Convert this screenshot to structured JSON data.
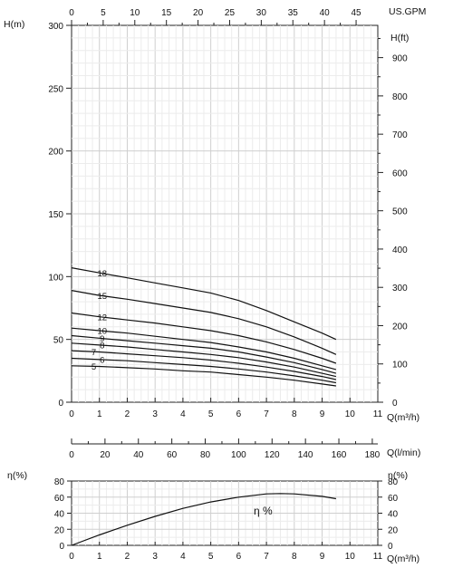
{
  "chart_data": [
    {
      "type": "line",
      "name": "head",
      "x_label": "Q(m³/h)",
      "x_ticks": [
        0,
        1,
        2,
        3,
        4,
        5,
        6,
        7,
        8,
        9,
        10,
        11
      ],
      "xlim": [
        0,
        11
      ],
      "y_label": "H(m)",
      "y_ticks": [
        0,
        50,
        100,
        150,
        200,
        250,
        300
      ],
      "ylim": [
        0,
        300
      ],
      "y2_label": "H(ft)",
      "y2_ticks": [
        0,
        100,
        200,
        300,
        400,
        500,
        600,
        700,
        800,
        900
      ],
      "top_label": "US.GPM",
      "top_ticks": [
        0,
        5,
        10,
        15,
        20,
        25,
        30,
        35,
        40,
        45
      ],
      "grid": true,
      "series": [
        {
          "name": "18",
          "label_x": 1.1,
          "x": [
            0,
            1,
            2,
            3,
            4,
            5,
            6,
            7,
            8,
            9,
            9.5
          ],
          "y": [
            107,
            103,
            99,
            95,
            91,
            87,
            81,
            73,
            64,
            55,
            50
          ]
        },
        {
          "name": "15",
          "label_x": 1.1,
          "x": [
            0,
            1,
            2,
            3,
            4,
            5,
            6,
            7,
            8,
            9,
            9.5
          ],
          "y": [
            89,
            85,
            82,
            78.5,
            75,
            71.5,
            66.5,
            60,
            52,
            43,
            38
          ]
        },
        {
          "name": "12",
          "label_x": 1.1,
          "x": [
            0,
            1,
            2,
            3,
            4,
            5,
            6,
            7,
            8,
            9,
            9.5
          ],
          "y": [
            71,
            68,
            65.5,
            63,
            60,
            57,
            53,
            48,
            42,
            35,
            31
          ]
        },
        {
          "name": "10",
          "label_x": 1.1,
          "x": [
            0,
            1,
            2,
            3,
            4,
            5,
            6,
            7,
            8,
            9,
            9.5
          ],
          "y": [
            59,
            57,
            55,
            52.5,
            50,
            47.5,
            44,
            40,
            35,
            29,
            26
          ]
        },
        {
          "name": "9",
          "label_x": 1.1,
          "x": [
            0,
            1,
            2,
            3,
            4,
            5,
            6,
            7,
            8,
            9,
            9.5
          ],
          "y": [
            53,
            51,
            49,
            47,
            45,
            43,
            40,
            36,
            31.5,
            26,
            23
          ]
        },
        {
          "name": "8",
          "label_x": 1.1,
          "x": [
            0,
            1,
            2,
            3,
            4,
            5,
            6,
            7,
            8,
            9,
            9.5
          ],
          "y": [
            47,
            45.5,
            44,
            42,
            40,
            38,
            35.5,
            32,
            28,
            23,
            20.5
          ]
        },
        {
          "name": "7",
          "label_x": 0.8,
          "x": [
            0,
            1,
            2,
            3,
            4,
            5,
            6,
            7,
            8,
            9,
            9.5
          ],
          "y": [
            41,
            40,
            38.5,
            37,
            35.5,
            33.5,
            31,
            28,
            24.5,
            20.5,
            18
          ]
        },
        {
          "name": "6",
          "label_x": 1.1,
          "x": [
            0,
            1,
            2,
            3,
            4,
            5,
            6,
            7,
            8,
            9,
            9.5
          ],
          "y": [
            35,
            34,
            33,
            31.5,
            30,
            28.5,
            26.5,
            24,
            21,
            17.5,
            15.5
          ]
        },
        {
          "name": "5",
          "label_x": 0.8,
          "x": [
            0,
            1,
            2,
            3,
            4,
            5,
            6,
            7,
            8,
            9,
            9.5
          ],
          "y": [
            29,
            28.5,
            27.5,
            26.5,
            25,
            24,
            22,
            20,
            17.5,
            14.5,
            13
          ]
        }
      ]
    },
    {
      "type": "axis",
      "name": "flow-lpm",
      "x_label": "Q(l/min)",
      "x_ticks": [
        0,
        20,
        40,
        60,
        80,
        100,
        120,
        140,
        160,
        180
      ],
      "xlim": [
        0,
        183.3
      ]
    },
    {
      "type": "line",
      "name": "efficiency",
      "x_label": "Q(m³/h)",
      "x_ticks": [
        0,
        1,
        2,
        3,
        4,
        5,
        6,
        7,
        8,
        9,
        10,
        11
      ],
      "xlim": [
        0,
        11
      ],
      "y_label": "η(%)",
      "y2_label": "η(%)",
      "y_ticks": [
        0,
        20,
        40,
        60,
        80
      ],
      "ylim": [
        0,
        80
      ],
      "grid": true,
      "curve_label": "η %",
      "series": [
        {
          "name": "η",
          "x": [
            0,
            1,
            2,
            3,
            4,
            5,
            6,
            7,
            7.5,
            8,
            9,
            9.5
          ],
          "y": [
            0,
            13,
            25,
            36,
            46,
            54,
            60,
            64,
            64.5,
            64,
            61,
            58
          ]
        }
      ]
    }
  ]
}
